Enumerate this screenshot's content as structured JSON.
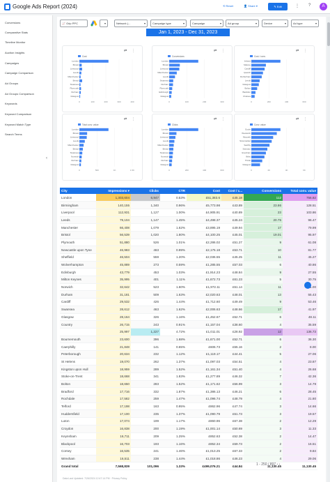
{
  "header": {
    "title": "Google Ads Report (2024)",
    "reset": "Reset",
    "share": "Share",
    "edit": "Edit",
    "avatar": "A"
  },
  "sidebar": {
    "items": [
      "Conversions",
      "Comparative Stats",
      "Timeline Monitor",
      "Auction Insights",
      "Campaigns",
      "Campaign Comparison",
      "Ad Groups",
      "Ad Groups Comparison",
      "Keywords",
      "Keyword Comparison",
      "Keyword Match Type",
      "Search Terms"
    ]
  },
  "filters": {
    "brand": "Grip PPC",
    "items": [
      "Network (...",
      "Campaign type",
      "Campaign",
      "Ad group",
      "Device",
      "Ad type"
    ]
  },
  "date_range": "Jan 1, 2023 - Dec 31, 2023",
  "chart_data": [
    {
      "type": "bar",
      "title": "",
      "legend": "Cost",
      "categories": [
        "London",
        "Bristol",
        "Liverpool",
        "Leeds",
        "Manchester",
        "Bristol",
        "Swansea",
        "Plymouth",
        "Durham",
        "Glasgow"
      ],
      "values": [
        52.4,
        4.2,
        4.9,
        3.5,
        2.2,
        5.0,
        2.0,
        3.0,
        2.6,
        1.4
      ],
      "xticks": [
        "0",
        "100",
        "200",
        "300",
        "400"
      ]
    },
    {
      "type": "bar",
      "title": "",
      "legend": "Conversions",
      "categories": [
        "London",
        "Bristol",
        "Liverpool",
        "Manchester",
        "Leeds",
        "Swansea",
        "Durham",
        "Plymouth",
        "Edinburgh",
        "Glasgow"
      ],
      "values": [
        115,
        42,
        40,
        30,
        23,
        16,
        15,
        12,
        10,
        8
      ],
      "xticks": [
        "0",
        "100",
        "200",
        "300"
      ]
    },
    {
      "type": "bar",
      "title": "",
      "legend": "Cost / conv.",
      "categories": [
        "Ireland",
        "Malone",
        "Cardiff",
        "Ipswich",
        "Rotherham",
        "Leeds",
        "Glasgow",
        "Bolton",
        "Basildon",
        "Chelsea"
      ],
      "values": [
        70,
        35,
        32,
        28,
        25,
        20,
        18,
        14,
        10,
        8
      ],
      "xticks": [
        "0",
        "200",
        "400",
        "600"
      ]
    },
    {
      "type": "bar",
      "title": "",
      "legend": "Total conv. value",
      "categories": [
        "London",
        "Bristol",
        "Liverpool",
        "Leeds",
        "Manchester",
        "Bristol",
        "Swansea",
        "Norwich",
        "Durham",
        "Glasgow"
      ],
      "values": [
        150,
        40,
        38,
        28,
        22,
        18,
        15,
        12,
        10,
        8
      ],
      "xticks": [
        "0",
        "500",
        "1K",
        "1.5K"
      ]
    },
    {
      "type": "bar",
      "title": "",
      "legend": "Clicks",
      "categories": [
        "London",
        "Bristol",
        "Liverpool",
        "Leeds",
        "Manchester",
        "Bristol",
        "Swansea",
        "Norwich",
        "Durham",
        "Glasgow"
      ],
      "values": [
        140,
        35,
        30,
        25,
        22,
        20,
        18,
        16,
        14,
        12
      ],
      "xticks": [
        "0",
        "200",
        "400",
        "600"
      ]
    },
    {
      "type": "bar",
      "title": "",
      "legend": "Conv. value",
      "categories": [
        "Goole",
        "Woolwich",
        "Morpeth",
        "Stowmarket",
        "Saxilby",
        "Swindon",
        "Evesham",
        "Ilkley",
        "Thirsk",
        "Glasgow"
      ],
      "values": [
        40,
        35,
        30,
        28,
        25,
        22,
        20,
        18,
        15,
        12
      ],
      "xticks": [
        "0",
        "2K",
        "4K",
        "6K"
      ]
    }
  ],
  "table": {
    "headers": [
      "City",
      "Impressions ▾",
      "Clicks",
      "CTR",
      "Cost",
      "Cost / c...",
      "Conversions",
      "Total conv. value"
    ],
    "rows": [
      [
        "London",
        "1,303,604",
        "6,947",
        "0.53%",
        "£51,383.6",
        "£45.18",
        "112",
        "756.82"
      ],
      [
        "Birmingham",
        "140,155",
        "1,340",
        "0.96%",
        "£5,773.98",
        "£43.89",
        "23.86",
        "128.51"
      ],
      [
        "Liverpool",
        "112,931",
        "1,127",
        "1.00%",
        "£4,905.91",
        "£40.89",
        "23",
        "103.86"
      ],
      [
        "Leeds",
        "79,104",
        "1,147",
        "1.45%",
        "£4,498.37",
        "£45.24",
        "20.75",
        "96.47"
      ],
      [
        "Manchester",
        "66,408",
        "1,079",
        "1.62%",
        "£3,895.19",
        "£49.94",
        "17",
        "79.99"
      ],
      [
        "Bristol",
        "56,539",
        "1,020",
        "1.80%",
        "£4,100.25",
        "£45.01",
        "19.01",
        "95.97"
      ],
      [
        "Plymouth",
        "51,880",
        "526",
        "1.01%",
        "£2,286.02",
        "£51.27",
        "9",
        "61.08"
      ],
      [
        "Newcastle upon Tyne",
        "46,983",
        "463",
        "0.99%",
        "£2,175.18",
        "£53.71",
        "10",
        "81.77"
      ],
      [
        "Sheffield",
        "46,504",
        "559",
        "1.20%",
        "£2,036.55",
        "£45.25",
        "11",
        "45.27"
      ],
      [
        "Wolverhampton",
        "45,889",
        "273",
        "0.59%",
        "£1,285.55",
        "£57.03",
        "6",
        "40.86"
      ],
      [
        "Edinburgh",
        "43,779",
        "453",
        "1.03%",
        "£1,914.23",
        "£48.84",
        "9",
        "27.55"
      ],
      [
        "Milton Keynes",
        "35,995",
        "401",
        "1.11%",
        "£1,672.73",
        "£61.23",
        "5",
        "30.75"
      ],
      [
        "Norwich",
        "32,642",
        "523",
        "1.60%",
        "£1,972.11",
        "£51.14",
        "11",
        "61.00"
      ],
      [
        "Durham",
        "31,181",
        "509",
        "1.63%",
        "£2,020.63",
        "£48.01",
        "13",
        "55.43"
      ],
      [
        "Cardiff",
        "29,532",
        "426",
        "1.44%",
        "£1,712.60",
        "£49.49",
        "9",
        "53.46"
      ],
      [
        "Swansea",
        "28,612",
        "463",
        "1.62%",
        "£2,006.63",
        "£48.66",
        "17",
        "41.97"
      ],
      [
        "Glasgow",
        "28,164",
        "326",
        "1.16%",
        "£1,452.67",
        "£52.71",
        "6",
        "48.11"
      ],
      [
        "Country",
        "26,715",
        "243",
        "0.91%",
        "£1,157.04",
        "£38.60",
        "4",
        "35.59"
      ],
      [
        "",
        "25,997",
        "1,227",
        "4.72%",
        "£1,011.01",
        "£28.92",
        "12",
        "136.73"
      ],
      [
        "Bournemouth",
        "23,600",
        "396",
        "1.68%",
        "£1,671.00",
        "£52.71",
        "6",
        "36.30"
      ],
      [
        "Caerphilly",
        "21,848",
        "141",
        "0.65%",
        "£606.73",
        "£55.16",
        "2",
        "8.00"
      ],
      [
        "Peterborough",
        "20,634",
        "232",
        "1.12%",
        "£1,119.17",
        "£44.41",
        "5",
        "27.06"
      ],
      [
        "St Helens",
        "19,070",
        "262",
        "1.37%",
        "£1,097.03",
        "£54.51",
        "4",
        "23.87"
      ],
      [
        "Kingston upon Hull",
        "18,959",
        "289",
        "1.52%",
        "£1,161.34",
        "£51.40",
        "4",
        "26.68"
      ],
      [
        "Stoke-on-Trent",
        "18,668",
        "341",
        "1.83%",
        "£1,277.89",
        "£46.32",
        "7",
        "42.36"
      ],
      [
        "Bolton",
        "18,650",
        "283",
        "1.52%",
        "£1,171.62",
        "£56.99",
        "3",
        "14.79"
      ],
      [
        "Bradford",
        "17,716",
        "332",
        "1.87%",
        "£1,386.13",
        "£46.21",
        "6",
        "28.45"
      ],
      [
        "Rochdale",
        "17,582",
        "259",
        "1.47%",
        "£1,096.74",
        "£48.79",
        "4",
        "21.80"
      ],
      [
        "Telford",
        "17,198",
        "163",
        "0.95%",
        "£862.96",
        "£47.74",
        "3",
        "14.66"
      ],
      [
        "Huddersfield",
        "17,100",
        "235",
        "1.37%",
        "£1,090.79",
        "£51.73",
        "3",
        "19.57"
      ],
      [
        "Luton",
        "17,074",
        "199",
        "1.17%",
        "£860.96",
        "£67.38",
        "2",
        "12.29"
      ],
      [
        "Croydon",
        "16,838",
        "200",
        "1.19%",
        "£1,001.14",
        "£50.69",
        "3",
        "11.33"
      ],
      [
        "Keynsham",
        "16,711",
        "209",
        "1.25%",
        "£852.63",
        "£52.38",
        "2",
        "14.47"
      ],
      [
        "Blackpool",
        "16,703",
        "193",
        "1.16%",
        "£852.34",
        "£59.73",
        "2",
        "16.51"
      ],
      [
        "Corsey",
        "16,535",
        "241",
        "1.46%",
        "£1,013.25",
        "£67.33",
        "2",
        "9.84"
      ],
      [
        "Wrexham",
        "16,511",
        "238",
        "1.44%",
        "£1,018.86",
        "£46.23",
        "4",
        "29.06"
      ]
    ],
    "total": [
      "Grand total",
      "7,568,839",
      "101,096",
      "1.33%",
      "£499,076.21",
      "£44.84",
      "11,130.45",
      "11,130.45"
    ]
  },
  "pager": "1 - 250 / 897",
  "footer": "Data Last Updated: 7/26/2024 12:47:14 PM · Privacy Policy",
  "colors": {
    "accent": "#1a73e8",
    "barcolor": "#4285f4",
    "heat_yellow": "#fef7c9",
    "heat_green": "#34a853",
    "heat_purple": "#a142f4"
  }
}
